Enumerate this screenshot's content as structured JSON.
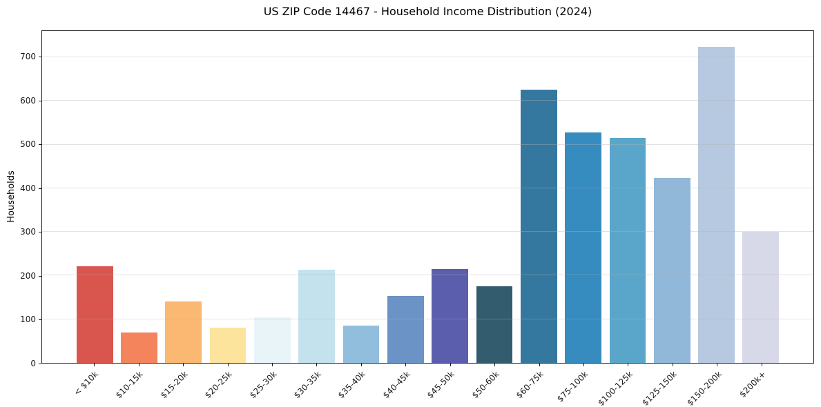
{
  "figure": {
    "background": "#ffffff"
  },
  "chart_data": {
    "type": "bar",
    "title": "US ZIP Code 14467 - Household Income Distribution (2024)",
    "xlabel": "",
    "ylabel": "Households",
    "categories": [
      "< $10k",
      "$10-15k",
      "$15-20k",
      "$20-25k",
      "$25-30k",
      "$30-35k",
      "$35-40k",
      "$40-45k",
      "$45-50k",
      "$50-60k",
      "$60-75k",
      "$75-100k",
      "$100-125k",
      "$125-150k",
      "$150-200k",
      "$200k+"
    ],
    "values": [
      222,
      70,
      141,
      81,
      104,
      214,
      85,
      154,
      215,
      175,
      625,
      528,
      515,
      424,
      723,
      300
    ],
    "bar_colors": [
      "#d8564d",
      "#f3845c",
      "#fab872",
      "#fce49d",
      "#e9f4f9",
      "#c3e2ee",
      "#91bedd",
      "#6b93c6",
      "#5b5dad",
      "#335c6e",
      "#35789f",
      "#368bbf",
      "#5aa6ca",
      "#91b7d9",
      "#b6c9e0",
      "#d8d9e8"
    ],
    "ylim": [
      0,
      760
    ],
    "yticks": [
      0,
      100,
      200,
      300,
      400,
      500,
      600,
      700
    ],
    "grid": true,
    "legend_position": "none",
    "axis_color": "#1a1a1a",
    "grid_color": "#b4b4b4",
    "background": "#ffffff"
  }
}
